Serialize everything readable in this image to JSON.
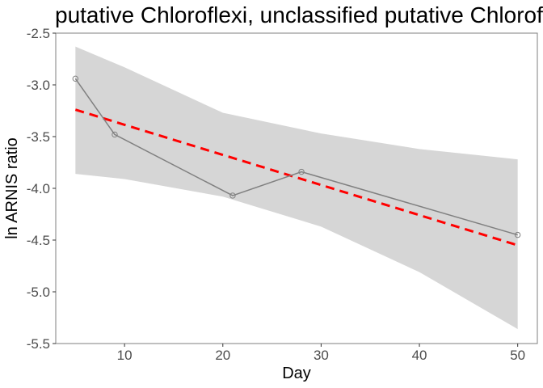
{
  "chart_data": {
    "type": "line",
    "title": "putative Chloroflexi, unclassified putative Chloroflexi",
    "xlabel": "Day",
    "ylabel": "ln ARNIS ratio",
    "xlim": [
      3,
      52
    ],
    "ylim": [
      -5.5,
      -2.5
    ],
    "x_ticks": [
      10,
      20,
      30,
      40,
      50
    ],
    "y_ticks": [
      -2.5,
      -3.0,
      -3.5,
      -4.0,
      -4.5,
      -5.0,
      -5.5
    ],
    "x_tick_labels": [
      "10",
      "20",
      "30",
      "40",
      "50"
    ],
    "y_tick_labels": [
      "-2.5",
      "-3.0",
      "-3.5",
      "-4.0",
      "-4.5",
      "-5.0",
      "-5.5"
    ],
    "grid": false,
    "series": [
      {
        "style": "line-markers",
        "color": "#808080",
        "x": [
          5,
          9,
          21,
          28,
          50
        ],
        "y": [
          -2.94,
          -3.48,
          -4.07,
          -3.84,
          -4.45
        ]
      },
      {
        "style": "dashed-trend",
        "color": "#ff0000",
        "x": [
          5,
          50
        ],
        "y": [
          -3.24,
          -4.55
        ]
      }
    ],
    "confidence_band": {
      "color": "#d6d6d6",
      "x": [
        5,
        10,
        20,
        30,
        40,
        50
      ],
      "lower": [
        -3.86,
        -3.91,
        -4.08,
        -4.37,
        -4.81,
        -5.36
      ],
      "upper": [
        -2.63,
        -2.83,
        -3.27,
        -3.47,
        -3.62,
        -3.72
      ]
    }
  }
}
